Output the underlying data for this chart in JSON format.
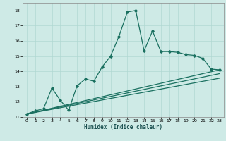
{
  "xlabel": "Humidex (Indice chaleur)",
  "ylabel": "",
  "background_color": "#ceeae6",
  "grid_color": "#b0d8d2",
  "line_color": "#1a7060",
  "xlim": [
    -0.5,
    23.5
  ],
  "ylim": [
    11,
    18.5
  ],
  "xticks": [
    0,
    1,
    2,
    3,
    4,
    5,
    6,
    7,
    8,
    9,
    10,
    11,
    12,
    13,
    14,
    15,
    16,
    17,
    18,
    19,
    20,
    21,
    22,
    23
  ],
  "yticks": [
    11,
    12,
    13,
    14,
    15,
    16,
    17,
    18
  ],
  "main_x": [
    0,
    1,
    2,
    3,
    4,
    5,
    6,
    7,
    8,
    9,
    10,
    11,
    12,
    13,
    14,
    15,
    16,
    17,
    18,
    19,
    20,
    21,
    22,
    23
  ],
  "main_y": [
    11.2,
    11.4,
    11.55,
    12.9,
    12.1,
    11.45,
    13.05,
    13.5,
    13.35,
    14.3,
    15.0,
    16.3,
    17.9,
    18.0,
    15.35,
    16.65,
    15.3,
    15.3,
    15.25,
    15.1,
    15.05,
    14.85,
    14.15,
    14.1
  ],
  "line1_x": [
    0,
    23
  ],
  "line1_y": [
    11.2,
    14.1
  ],
  "line2_x": [
    0,
    23
  ],
  "line2_y": [
    11.2,
    13.85
  ],
  "line3_x": [
    0,
    23
  ],
  "line3_y": [
    11.2,
    13.55
  ]
}
